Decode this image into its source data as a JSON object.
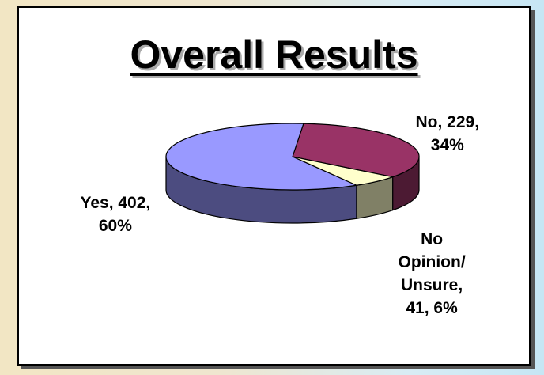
{
  "chart_data": {
    "type": "pie3d",
    "title": "Overall Results",
    "values": [
      402,
      229,
      41
    ],
    "value_labels": [
      "Yes, 402,\n60%",
      "No, 229,\n34%",
      "No\nOpinion/\nUnsure,\n41, 6%"
    ],
    "colors": [
      "#9999ff",
      "#993366",
      "#ffffcc"
    ]
  }
}
